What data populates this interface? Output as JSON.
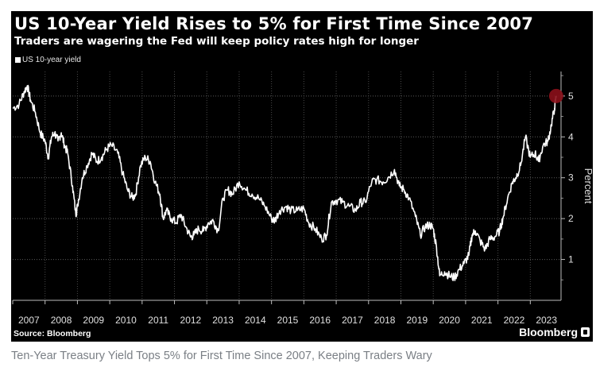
{
  "caption": "Ten-Year Treasury Yield Tops 5% for First Time Since 2007, Keeping Traders Wary",
  "chart_data": {
    "type": "line",
    "title": "US 10-Year Yield Rises to 5% for First Time Since 2007",
    "subtitle": "Traders are wagering the Fed will keep policy rates high for longer",
    "ylabel": "Percent",
    "ylim": [
      0,
      5.6
    ],
    "xlim": [
      2007.0,
      2023.95
    ],
    "yticks": [
      1,
      2,
      3,
      4,
      5
    ],
    "xticks": [
      "2007",
      "2008",
      "2009",
      "2010",
      "2011",
      "2012",
      "2013",
      "2014",
      "2015",
      "2016",
      "2017",
      "2018",
      "2019",
      "2020",
      "2021",
      "2022",
      "2023"
    ],
    "grid": true,
    "source": "Source: Bloomberg",
    "brand": "Bloomberg",
    "highlight": {
      "x": 2023.8,
      "y": 5.0,
      "color": "#8b0f1a"
    },
    "series": [
      {
        "name": "US 10-year yield",
        "color": "#ffffff",
        "x": [
          2007.0,
          2007.2,
          2007.35,
          2007.45,
          2007.55,
          2007.7,
          2007.85,
          2008.0,
          2008.1,
          2008.2,
          2008.3,
          2008.4,
          2008.5,
          2008.6,
          2008.7,
          2008.85,
          2008.95,
          2009.0,
          2009.15,
          2009.3,
          2009.45,
          2009.6,
          2009.75,
          2009.9,
          2010.05,
          2010.25,
          2010.4,
          2010.55,
          2010.7,
          2010.8,
          2010.95,
          2011.1,
          2011.25,
          2011.4,
          2011.55,
          2011.65,
          2011.75,
          2011.9,
          2012.05,
          2012.2,
          2012.35,
          2012.5,
          2012.6,
          2012.75,
          2012.9,
          2013.05,
          2013.2,
          2013.35,
          2013.5,
          2013.65,
          2013.8,
          2014.0,
          2014.2,
          2014.4,
          2014.6,
          2014.8,
          2015.0,
          2015.1,
          2015.25,
          2015.45,
          2015.6,
          2015.8,
          2016.0,
          2016.15,
          2016.35,
          2016.55,
          2016.7,
          2016.85,
          2017.0,
          2017.2,
          2017.4,
          2017.6,
          2017.75,
          2017.9,
          2018.1,
          2018.25,
          2018.45,
          2018.6,
          2018.8,
          2018.95,
          2019.1,
          2019.25,
          2019.45,
          2019.6,
          2019.75,
          2019.9,
          2020.0,
          2020.1,
          2020.2,
          2020.35,
          2020.5,
          2020.65,
          2020.8,
          2020.95,
          2021.1,
          2021.2,
          2021.3,
          2021.45,
          2021.6,
          2021.75,
          2021.9,
          2022.05,
          2022.15,
          2022.3,
          2022.45,
          2022.55,
          2022.7,
          2022.85,
          2023.0,
          2023.15,
          2023.25,
          2023.4,
          2023.55,
          2023.65,
          2023.75,
          2023.8
        ],
        "values": [
          4.7,
          4.8,
          5.1,
          5.25,
          4.9,
          4.6,
          4.1,
          3.9,
          3.5,
          4.0,
          4.1,
          3.9,
          4.1,
          3.8,
          3.6,
          2.8,
          2.1,
          2.3,
          3.0,
          3.3,
          3.6,
          3.4,
          3.5,
          3.7,
          3.8,
          3.6,
          3.1,
          2.7,
          2.5,
          2.6,
          3.3,
          3.5,
          3.4,
          2.9,
          2.6,
          2.0,
          2.2,
          2.0,
          1.9,
          2.1,
          1.8,
          1.55,
          1.6,
          1.75,
          1.7,
          1.9,
          1.95,
          1.7,
          2.5,
          2.7,
          2.6,
          2.9,
          2.7,
          2.6,
          2.5,
          2.3,
          2.0,
          1.95,
          2.2,
          2.3,
          2.2,
          2.2,
          2.25,
          1.9,
          1.75,
          1.5,
          1.6,
          2.4,
          2.45,
          2.4,
          2.3,
          2.2,
          2.4,
          2.4,
          2.9,
          2.95,
          2.9,
          3.0,
          3.2,
          2.8,
          2.7,
          2.5,
          2.05,
          1.6,
          1.8,
          1.85,
          1.75,
          1.3,
          0.6,
          0.7,
          0.6,
          0.55,
          0.75,
          0.9,
          1.1,
          1.6,
          1.7,
          1.45,
          1.25,
          1.5,
          1.55,
          1.7,
          2.0,
          2.5,
          2.9,
          3.0,
          3.3,
          4.0,
          3.5,
          3.6,
          3.4,
          3.8,
          3.9,
          4.3,
          4.7,
          5.0
        ]
      }
    ]
  }
}
